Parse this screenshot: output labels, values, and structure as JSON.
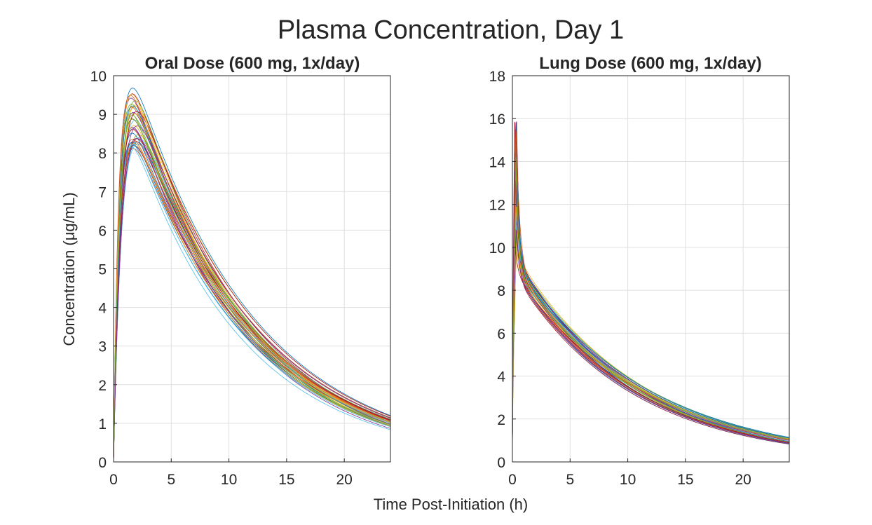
{
  "figure": {
    "title": "Plasma Concentration, Day 1",
    "shared_xlabel": "Time Post-Initiation (h)",
    "shared_ylabel": "Concentration  (μg/mL)"
  },
  "chart_data": [
    {
      "type": "line",
      "title": "Oral Dose (600 mg, 1x/day)",
      "xlabel": "Time Post-Initiation (h)",
      "ylabel": "Concentration  (μg/mL)",
      "xlim": [
        0,
        24
      ],
      "ylim": [
        0,
        10
      ],
      "xticks": [
        0,
        5,
        10,
        15,
        20
      ],
      "yticks": [
        0,
        1,
        2,
        3,
        4,
        5,
        6,
        7,
        8,
        9,
        10
      ],
      "grid": true,
      "legend": "none",
      "model": "oral",
      "peak_time_range_h": [
        1.2,
        2.2
      ],
      "peak_range": [
        8.1,
        9.8
      ],
      "value_at_10h_range": [
        3.9,
        4.1
      ],
      "value_at_24h_range": [
        0.95,
        1.15
      ],
      "series_count": 40
    },
    {
      "type": "line",
      "title": "Lung Dose (600 mg, 1x/day)",
      "xlabel": "Time Post-Initiation (h)",
      "ylabel": "",
      "xlim": [
        0,
        24
      ],
      "ylim": [
        0,
        18
      ],
      "xticks": [
        0,
        5,
        10,
        15,
        20
      ],
      "yticks": [
        0,
        2,
        4,
        6,
        8,
        10,
        12,
        14,
        16,
        18
      ],
      "grid": true,
      "legend": "none",
      "model": "lung",
      "peak_time_range_h": [
        0.2,
        0.4
      ],
      "peak_range": [
        10,
        16.5
      ],
      "value_at_1h_range": [
        8.6,
        9.6
      ],
      "value_at_10h_range": [
        3.8,
        4.1
      ],
      "value_at_24h_range": [
        1.0,
        1.3
      ],
      "series_count": 40
    }
  ],
  "colors": {
    "series_palette": [
      "#0072BD",
      "#D95319",
      "#EDB120",
      "#7E2F8E",
      "#77AC30",
      "#4DBEEE",
      "#A2142F"
    ],
    "grid": "#dfdfdf",
    "axes": "#262626"
  }
}
